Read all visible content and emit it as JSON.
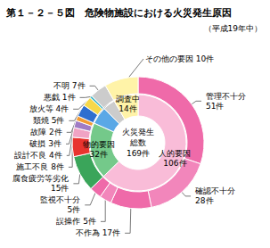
{
  "chart_data": {
    "type": "pie",
    "title": "第１－２－５図　危険物施設における火災発生原因",
    "subtitle": "（平成19年中）",
    "center_text": [
      "火災発生",
      "総数",
      "169件"
    ],
    "data_labels": true,
    "groups": [
      {
        "name": "人的要因",
        "value": 106,
        "value_label": "106件",
        "color": "#f9bcd8",
        "children": [
          {
            "name": "管理不十分",
            "value": 51,
            "value_label": "51件",
            "color": "#ef6aa9"
          },
          {
            "name": "確認不十分",
            "value": 28,
            "value_label": "28件",
            "color": "#f286bb"
          },
          {
            "name": "不作為",
            "value": 17,
            "value_label": "17件",
            "color": "#ef6aa9"
          },
          {
            "name": "誤操作",
            "value": 5,
            "value_label": "5件",
            "color": "#f286bb"
          },
          {
            "name": "監視不十分",
            "value": 5,
            "value_label": "5件",
            "color": "#ef6aa9"
          }
        ]
      },
      {
        "name": "物的要因",
        "value": 32,
        "value_label": "32件",
        "color": "#74c98a",
        "children": [
          {
            "name": "腐食疲労等劣化",
            "value": 15,
            "value_label": "15件",
            "color": "#3aa55a"
          },
          {
            "name": "施工不良",
            "value": 8,
            "value_label": "8件",
            "color": "#e8342f"
          },
          {
            "name": "設計不良",
            "value": 4,
            "value_label": "4件",
            "color": "#f0a3c4"
          },
          {
            "name": "破損",
            "value": 3,
            "value_label": "3件",
            "color": "#a07cc5"
          },
          {
            "name": "故障",
            "value": 2,
            "value_label": "2件",
            "color": "#f39c34"
          }
        ]
      },
      {
        "name": "その他の要因",
        "value": 10,
        "value_label": "10件",
        "color": "#5aa8e6",
        "children": [
          {
            "name": "類焼",
            "value": 5,
            "value_label": "5件",
            "color": "#2f6fcf"
          },
          {
            "name": "放火等",
            "value": 4,
            "value_label": "4件",
            "color": "#f6d84a"
          },
          {
            "name": "悪戯",
            "value": 1,
            "value_label": "1件",
            "color": "#46b9c8"
          }
        ]
      },
      {
        "name": "不明",
        "value": 7,
        "value_label": "7件",
        "color": "#cccccc",
        "children": []
      },
      {
        "name": "調査中",
        "value": 14,
        "value_label": "14件",
        "color": "#fff3a8",
        "children": []
      }
    ]
  }
}
